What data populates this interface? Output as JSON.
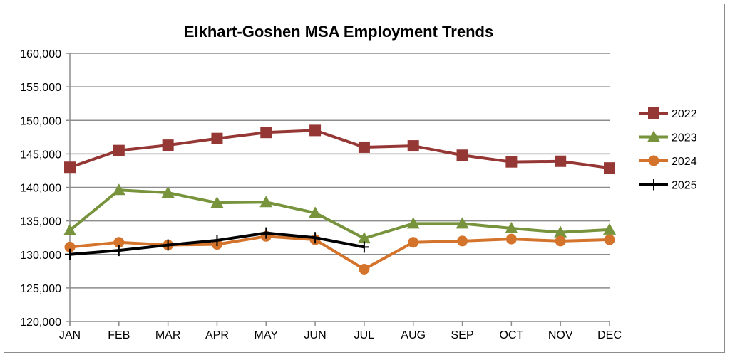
{
  "chart_data": {
    "type": "line",
    "title": "Elkhart-Goshen MSA Employment Trends",
    "xlabel": "",
    "ylabel": "",
    "categories": [
      "JAN",
      "FEB",
      "MAR",
      "APR",
      "MAY",
      "JUN",
      "JUL",
      "AUG",
      "SEP",
      "OCT",
      "NOV",
      "DEC"
    ],
    "ylim": [
      120000,
      160000
    ],
    "yticks": [
      120000,
      125000,
      130000,
      135000,
      140000,
      145000,
      150000,
      155000,
      160000
    ],
    "ytick_labels": [
      "120,000",
      "125,000",
      "130,000",
      "135,000",
      "140,000",
      "145,000",
      "150,000",
      "155,000",
      "160,000"
    ],
    "grid": true,
    "legend_position": "right",
    "series": [
      {
        "name": "2022",
        "color": "#953735",
        "marker": "square",
        "values": [
          143000,
          145500,
          146300,
          147300,
          148200,
          148500,
          146000,
          146200,
          144800,
          143800,
          143900,
          142900
        ]
      },
      {
        "name": "2023",
        "color": "#77933c",
        "marker": "triangle",
        "values": [
          133600,
          139600,
          139200,
          137700,
          137800,
          136200,
          132400,
          134600,
          134600,
          133900,
          133300,
          133700
        ]
      },
      {
        "name": "2024",
        "color": "#d4732b",
        "marker": "circle",
        "values": [
          131100,
          131800,
          131400,
          131500,
          132700,
          132200,
          127800,
          131800,
          132000,
          132300,
          132000,
          132200
        ]
      },
      {
        "name": "2025",
        "color": "#000000",
        "marker": "plus",
        "values": [
          130000,
          130600,
          131400,
          132100,
          133200,
          132500,
          131100,
          null,
          null,
          null,
          null,
          null
        ]
      }
    ]
  }
}
